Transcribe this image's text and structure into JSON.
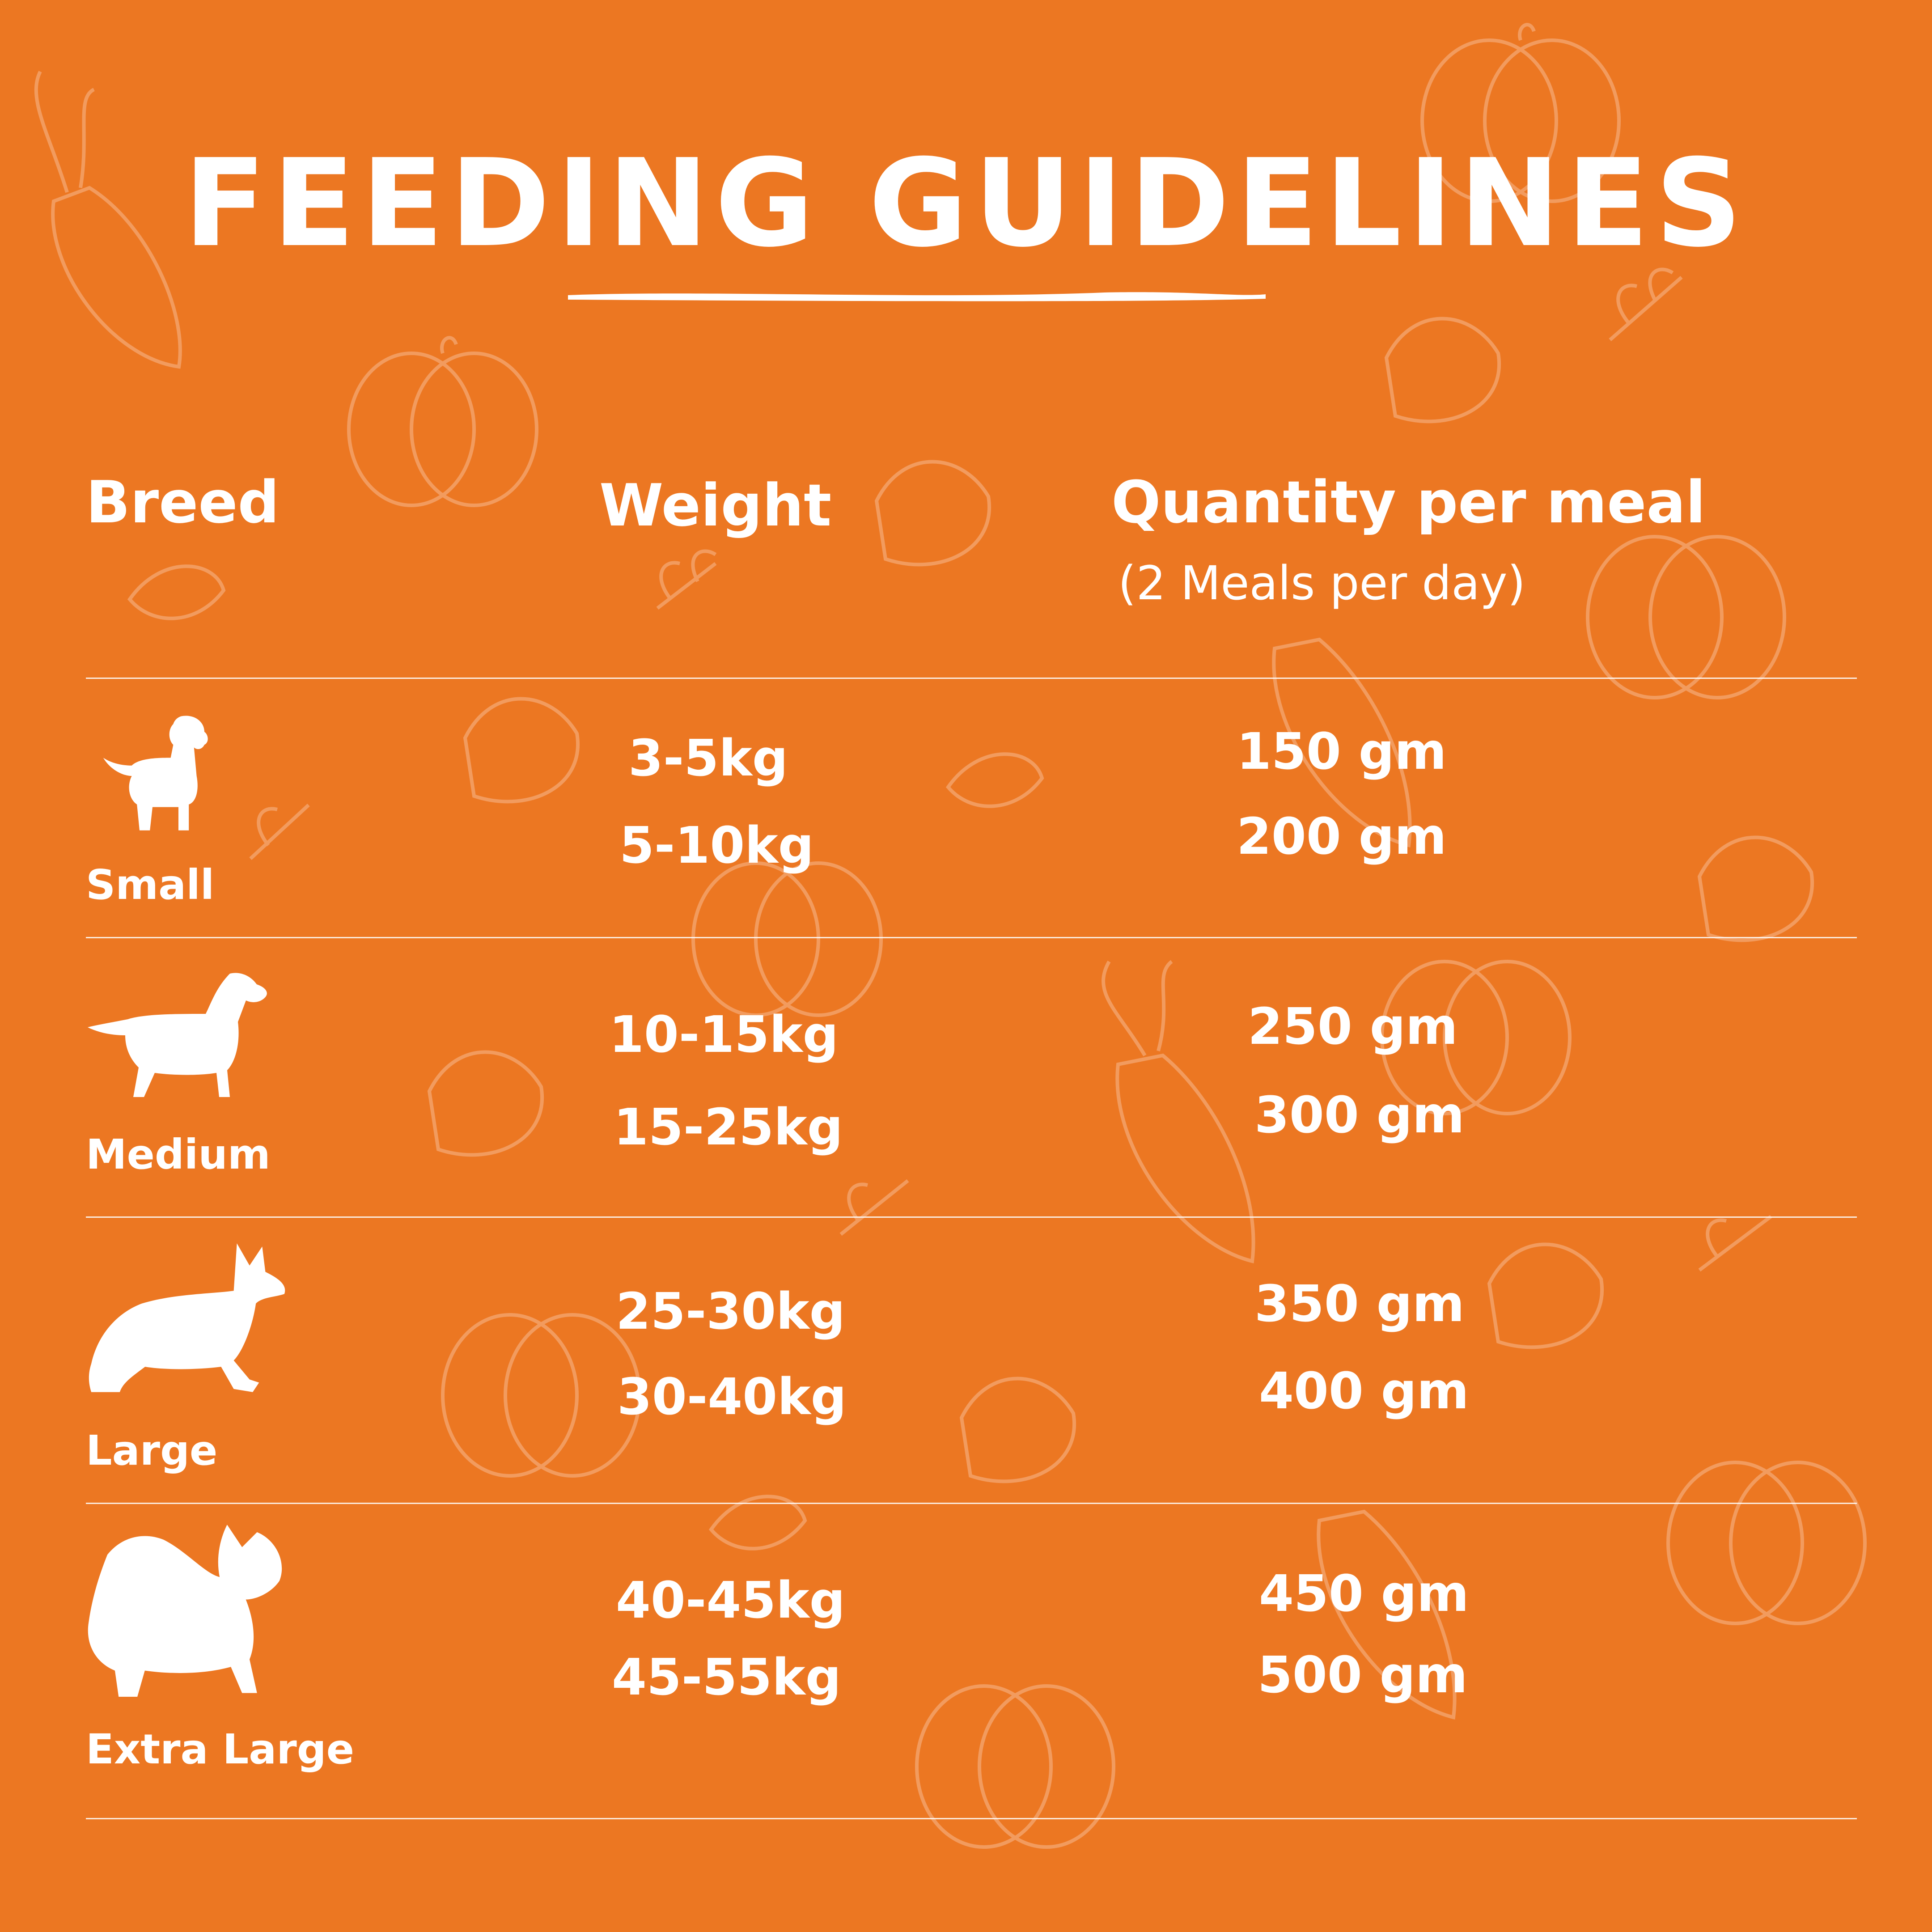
{
  "title": "FEEDING GUIDELINES",
  "colors": {
    "background": "#ec7722",
    "text": "#ffffff",
    "doodle": "#f5a872"
  },
  "headers": {
    "breed": "Breed",
    "weight": "Weight",
    "quantity": "Quantity per meal",
    "quantity_note": "(2 Meals per day)"
  },
  "rows": [
    {
      "icon": "small-dog-icon",
      "breed": "Small",
      "weights": [
        "3-5kg",
        "5-10kg"
      ],
      "quantities": [
        "150 gm",
        "200 gm"
      ]
    },
    {
      "icon": "medium-dog-icon",
      "breed": "Medium",
      "weights": [
        "10-15kg",
        "15-25kg"
      ],
      "quantities": [
        "250 gm",
        "300 gm"
      ]
    },
    {
      "icon": "large-dog-icon",
      "breed": "Large",
      "weights": [
        "25-30kg",
        "30-40kg"
      ],
      "quantities": [
        "350 gm",
        "400 gm"
      ]
    },
    {
      "icon": "extra-large-dog-icon",
      "breed": "Extra Large",
      "weights": [
        "40-45kg",
        "45-55kg"
      ],
      "quantities": [
        "450 gm",
        "500 gm"
      ]
    }
  ]
}
